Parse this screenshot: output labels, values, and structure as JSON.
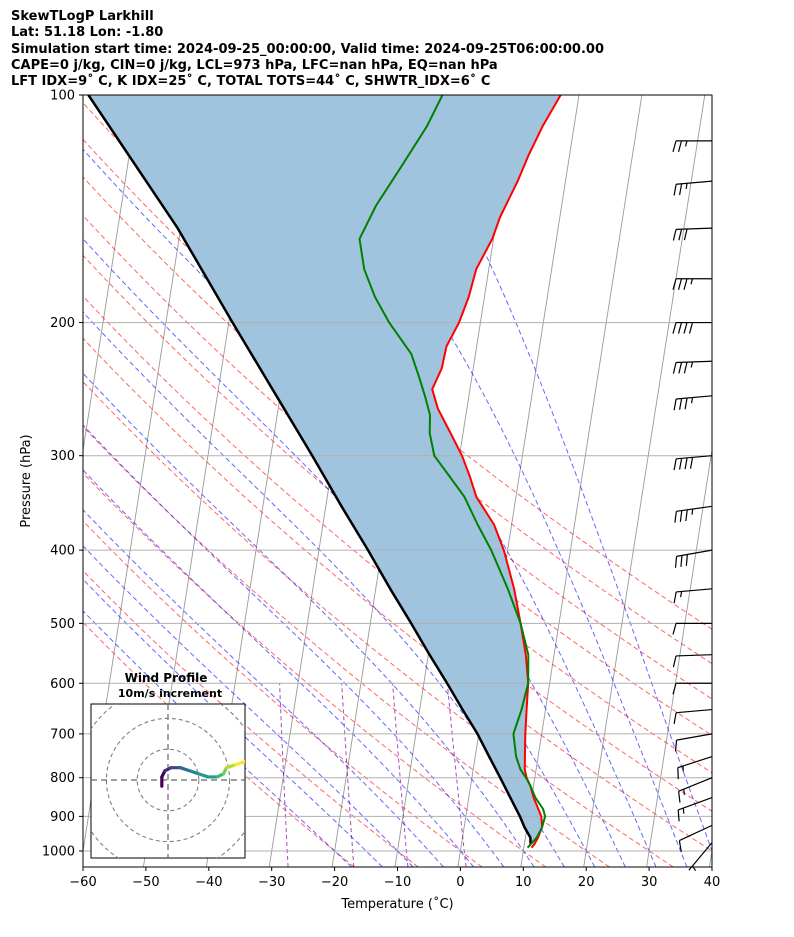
{
  "header": {
    "line1": "SkewTLogP Larkhill",
    "line2": "Lat: 51.18   Lon: -1.80",
    "line3": "Simulation start time: 2024-09-25_00:00:00, Valid time: 2024-09-25T06:00:00.00",
    "line4": "CAPE=0 j/kg, CIN=0 j/kg, LCL=973 hPa, LFC=nan hPa, EQ=nan hPa",
    "line5": "LFT IDX=9˚ C, K IDX=25˚ C, TOTAL TOTS=44˚ C, SHWTR_IDX=6˚ C"
  },
  "chart_data": [
    {
      "type": "line",
      "title": "",
      "xlabel": "Temperature (˚C)",
      "ylabel": "Pressure (hPa)",
      "xlim": [
        -60,
        40
      ],
      "ylim": [
        1050,
        100
      ],
      "y_scale": "log",
      "x_ticks": [
        -60,
        -50,
        -40,
        -30,
        -20,
        -10,
        0,
        10,
        20,
        30,
        40
      ],
      "x_tick_labels": [
        "−60",
        "−50",
        "−40",
        "−30",
        "−20",
        "−10",
        "0",
        "10",
        "20",
        "30",
        "40"
      ],
      "y_ticks": [
        1000,
        900,
        800,
        700,
        600,
        500,
        400,
        300,
        200,
        100
      ],
      "y_tick_labels": [
        "1000",
        "900",
        "800",
        "700",
        "600",
        "500",
        "400",
        "300",
        "200",
        "100"
      ],
      "grid": true,
      "skew": true,
      "background_lines": {
        "dry_adiabats": {
          "color": "#ff0000",
          "style": "dashed"
        },
        "moist_adiabats": {
          "color": "#0000ff",
          "style": "dashed"
        },
        "mixing_ratio_lines": {
          "color": "#8000a0",
          "style": "dashed"
        },
        "isotherms": {
          "color": "#999999",
          "style": "solid"
        }
      },
      "series": [
        {
          "key": "temperature",
          "color": "#ff0000",
          "p": [
            990,
            980,
            960,
            930,
            900,
            870,
            850,
            820,
            800,
            780,
            750,
            700,
            650,
            600,
            550,
            500,
            450,
            400,
            370,
            340,
            320,
            300,
            280,
            260,
            245,
            230,
            215,
            200,
            185,
            170,
            155,
            145,
            130,
            120,
            110,
            100
          ],
          "values": [
            11.2,
            11.6,
            12,
            12.4,
            12,
            11,
            10.3,
            9.5,
            8.7,
            8.2,
            7.9,
            7.4,
            7,
            6.6,
            5.5,
            3.9,
            2,
            -0.6,
            -2.8,
            -6.3,
            -7.8,
            -9.6,
            -12,
            -14.6,
            -16,
            -15,
            -14.8,
            -13.4,
            -12.5,
            -12,
            -10.2,
            -9.5,
            -7.6,
            -6.5,
            -5,
            -2.9
          ]
        },
        {
          "key": "dewpoint",
          "color": "#008000",
          "p": [
            990,
            980,
            960,
            930,
            900,
            880,
            850,
            820,
            800,
            780,
            750,
            700,
            650,
            600,
            550,
            500,
            450,
            400,
            370,
            340,
            320,
            300,
            280,
            265,
            250,
            235,
            220,
            200,
            185,
            170,
            155,
            140,
            125,
            110,
            100
          ],
          "values": [
            10.6,
            11,
            11.8,
            12.4,
            12.6,
            12.1,
            10.6,
            9.5,
            8.6,
            7.5,
            6.5,
            5.5,
            6.2,
            6.6,
            5.9,
            3.9,
            1,
            -2.6,
            -5.4,
            -8.2,
            -11,
            -14,
            -15.3,
            -15.7,
            -17,
            -18.5,
            -20.2,
            -24.5,
            -27.4,
            -29.8,
            -31.3,
            -29.5,
            -26.6,
            -23.4,
            -21.7
          ]
        },
        {
          "key": "parcel",
          "color": "#000000",
          "p": [
            980,
            960,
            930,
            900,
            850,
            800,
            750,
            700,
            650,
            600,
            550,
            500,
            450,
            400,
            350,
            300,
            250,
            200,
            150,
            100
          ],
          "values": [
            11,
            10.8,
            9.6,
            8.6,
            6.6,
            4.5,
            2.2,
            -0.2,
            -3.2,
            -6.3,
            -9.8,
            -13.5,
            -17.7,
            -22.2,
            -27.5,
            -33.4,
            -40.6,
            -49.4,
            -60.5,
            -78
          ]
        }
      ],
      "shading": {
        "between": [
          "parcel",
          "temperature"
        ],
        "color": "#a0c4de"
      },
      "wind_barbs": [
        {
          "p": 975,
          "speed_kt": 5,
          "dir": 220
        },
        {
          "p": 925,
          "speed_kt": 10,
          "dir": 245
        },
        {
          "p": 850,
          "speed_kt": 15,
          "dir": 250
        },
        {
          "p": 800,
          "speed_kt": 15,
          "dir": 248
        },
        {
          "p": 750,
          "speed_kt": 15,
          "dir": 252
        },
        {
          "p": 700,
          "speed_kt": 10,
          "dir": 260
        },
        {
          "p": 650,
          "speed_kt": 10,
          "dir": 265
        },
        {
          "p": 600,
          "speed_kt": 10,
          "dir": 270
        },
        {
          "p": 550,
          "speed_kt": 10,
          "dir": 268
        },
        {
          "p": 500,
          "speed_kt": 10,
          "dir": 270
        },
        {
          "p": 450,
          "speed_kt": 15,
          "dir": 265
        },
        {
          "p": 400,
          "speed_kt": 30,
          "dir": 260
        },
        {
          "p": 350,
          "speed_kt": 35,
          "dir": 262
        },
        {
          "p": 300,
          "speed_kt": 40,
          "dir": 265
        },
        {
          "p": 250,
          "speed_kt": 35,
          "dir": 265
        },
        {
          "p": 225,
          "speed_kt": 35,
          "dir": 268
        },
        {
          "p": 200,
          "speed_kt": 40,
          "dir": 270
        },
        {
          "p": 175,
          "speed_kt": 35,
          "dir": 270
        },
        {
          "p": 150,
          "speed_kt": 30,
          "dir": 268
        },
        {
          "p": 130,
          "speed_kt": 25,
          "dir": 265
        },
        {
          "p": 115,
          "speed_kt": 25,
          "dir": 270
        }
      ],
      "annotations": [
        "CAPE=0 j/kg",
        "CIN=0 j/kg",
        "LCL=973 hPa"
      ]
    },
    {
      "type": "scatter",
      "title": "Wind Profile",
      "subtitle": "10m/s increment",
      "xlim": [
        -25,
        25
      ],
      "ylim": [
        -25,
        25
      ],
      "rings_mps": [
        10,
        20,
        30
      ],
      "grid": "polar",
      "colormap": "viridis",
      "hodograph_uv": [
        [
          -2,
          -2
        ],
        [
          -2,
          1
        ],
        [
          -1,
          3
        ],
        [
          1,
          4
        ],
        [
          4,
          4
        ],
        [
          7,
          3
        ],
        [
          10,
          2
        ],
        [
          13,
          1
        ],
        [
          16,
          1
        ],
        [
          18,
          2
        ],
        [
          19,
          4
        ],
        [
          22,
          5
        ],
        [
          25,
          6
        ]
      ]
    }
  ]
}
